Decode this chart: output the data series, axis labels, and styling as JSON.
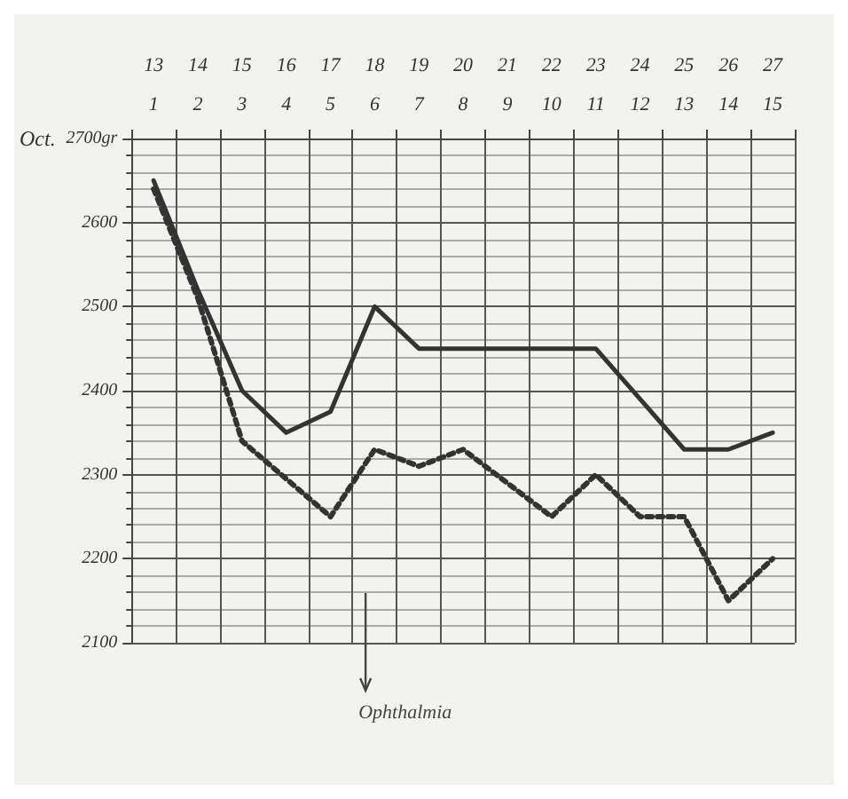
{
  "chart_data": {
    "type": "line",
    "xlabel": "Oct.",
    "ylabel": null,
    "categories": [
      "13\n1",
      "14\n2",
      "15\n3",
      "16\n4",
      "17\n5",
      "18\n6",
      "19\n7",
      "20\n8",
      "21\n9",
      "22\n10",
      "23\n11",
      "24\n12",
      "25\n13",
      "26\n14",
      "27\n15"
    ],
    "series": [
      {
        "color": "#333333",
        "line_style": "solid",
        "values": [
          2650,
          2520,
          2400,
          2350,
          2375,
          2500,
          2450,
          2450,
          2450,
          2450,
          2450,
          2390,
          2330,
          2330,
          2350
        ]
      },
      {
        "color": "#333333",
        "line_style": "dotted",
        "values": [
          2640,
          2510,
          2340,
          2295,
          2250,
          2330,
          2310,
          2330,
          2290,
          2250,
          2300,
          2250,
          2250,
          2150,
          2200
        ]
      }
    ],
    "ylim": [
      2100,
      2700
    ],
    "yticks": [
      2100,
      2200,
      2300,
      2400,
      2500,
      2600,
      {
        "value": 2700,
        "label": "2700gr"
      }
    ],
    "grid": true,
    "marker": "none",
    "annotations": [
      "Ophthalmia"
    ]
  }
}
